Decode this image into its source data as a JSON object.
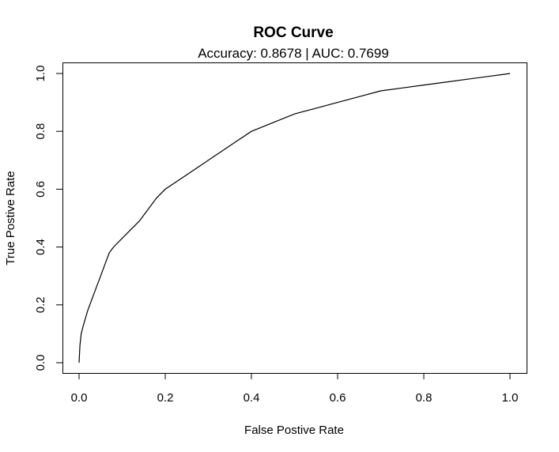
{
  "chart_data": {
    "type": "line",
    "title": "ROC Curve",
    "subtitle": "Accuracy: 0.8678 | AUC: 0.7699",
    "xlabel": "False Postive Rate",
    "ylabel": "True Postive Rate",
    "xlim": [
      0,
      1
    ],
    "ylim": [
      0,
      1
    ],
    "xticks": [
      0.0,
      0.2,
      0.4,
      0.6,
      0.8,
      1.0
    ],
    "xtick_labels": [
      "0.0",
      "0.2",
      "0.4",
      "0.6",
      "0.8",
      "1.0"
    ],
    "yticks": [
      0.0,
      0.2,
      0.4,
      0.6,
      0.8,
      1.0
    ],
    "ytick_labels": [
      "0.0",
      "0.2",
      "0.4",
      "0.6",
      "0.8",
      "1.0"
    ],
    "grid": false,
    "series": [
      {
        "x": [
          0.0,
          0.002,
          0.005,
          0.01,
          0.02,
          0.03,
          0.04,
          0.05,
          0.06,
          0.07,
          0.08,
          0.1,
          0.12,
          0.14,
          0.16,
          0.18,
          0.2,
          0.22,
          0.25,
          0.28,
          0.3,
          0.33,
          0.36,
          0.4,
          0.45,
          0.5,
          0.55,
          0.6,
          0.65,
          0.7,
          0.75,
          0.8,
          0.85,
          0.9,
          0.95,
          1.0
        ],
        "y": [
          0.0,
          0.06,
          0.1,
          0.13,
          0.18,
          0.22,
          0.26,
          0.3,
          0.34,
          0.38,
          0.4,
          0.43,
          0.46,
          0.49,
          0.53,
          0.57,
          0.6,
          0.62,
          0.65,
          0.68,
          0.7,
          0.73,
          0.76,
          0.8,
          0.83,
          0.86,
          0.88,
          0.9,
          0.92,
          0.94,
          0.95,
          0.96,
          0.97,
          0.98,
          0.99,
          1.0
        ]
      }
    ]
  }
}
